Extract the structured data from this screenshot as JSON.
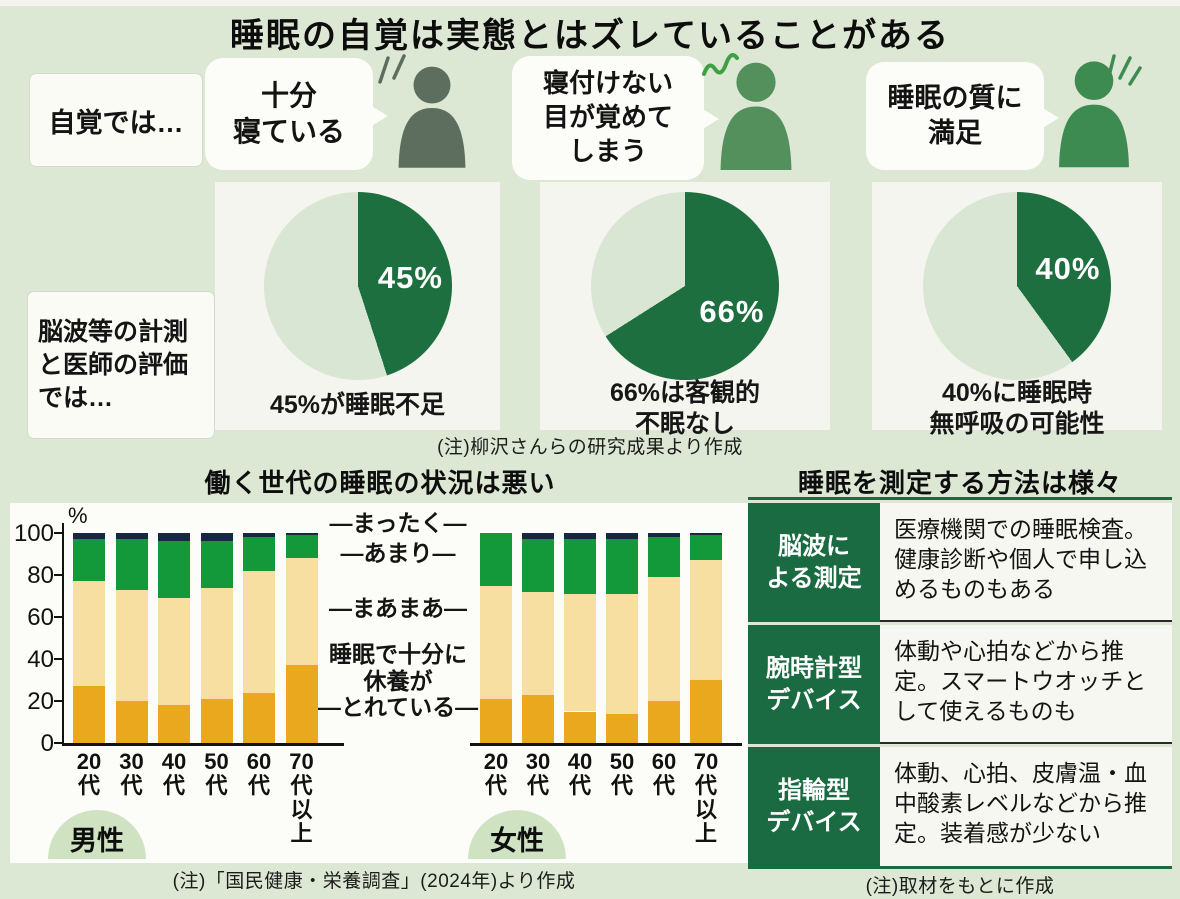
{
  "title": "睡眠の自覚は実態とはズレていることがある",
  "top": {
    "awareness_label": "自覚では…",
    "measured_label": "脳波等の計測\nと医師の評価\nでは…",
    "bubbles": [
      "十分\n寝ている",
      "寝付けない\n目が覚めて\nしまう",
      "睡眠の質に\n満足"
    ],
    "note": "(注)柳沢さんらの研究成果より作成"
  },
  "chart_data": [
    {
      "type": "pie",
      "claim": "十分寝ている",
      "value": 45,
      "percent_label": "45%",
      "caption": "45%が睡眠不足",
      "colors": {
        "slice": "#1e6f40",
        "rest": "#d8e6d3"
      }
    },
    {
      "type": "pie",
      "claim": "寝付けない・目が覚めてしまう",
      "value": 66,
      "percent_label": "66%",
      "caption": "66%は客観的\n不眠なし",
      "colors": {
        "slice": "#1e6f40",
        "rest": "#d8e6d3"
      }
    },
    {
      "type": "pie",
      "claim": "睡眠の質に満足",
      "value": 40,
      "percent_label": "40%",
      "caption": "40%に睡眠時\n無呼吸の可能性",
      "colors": {
        "slice": "#1e6f40",
        "rest": "#d8e6d3"
      }
    },
    {
      "type": "bar",
      "stacked": true,
      "title": "働く世代の睡眠の状況は悪い",
      "unit_label": "%",
      "ylim": [
        0,
        100
      ],
      "yticks": [
        0,
        20,
        40,
        60,
        80,
        100
      ],
      "categories": [
        "20代",
        "30代",
        "40代",
        "50代",
        "60代",
        "70代以上"
      ],
      "series": [
        "睡眠で十分に休養がとれている",
        "まあまあ",
        "あまり",
        "まったく"
      ],
      "colors": [
        "#e9a81e",
        "#f6dfa0",
        "#13993a",
        "#16283f"
      ],
      "groups": [
        {
          "label": "男性",
          "values": [
            [
              27,
              50,
              20,
              3
            ],
            [
              20,
              53,
              24,
              3
            ],
            [
              18,
              51,
              27,
              4
            ],
            [
              21,
              53,
              22,
              4
            ],
            [
              24,
              58,
              16,
              2
            ],
            [
              37,
              51,
              11,
              1
            ]
          ]
        },
        {
          "label": "女性",
          "values": [
            [
              21,
              54,
              25,
              0
            ],
            [
              23,
              49,
              25,
              3
            ],
            [
              15,
              56,
              26,
              3
            ],
            [
              14,
              57,
              26,
              3
            ],
            [
              20,
              59,
              19,
              2
            ],
            [
              30,
              57,
              12,
              1
            ]
          ]
        }
      ],
      "legend_items": [
        "―まったく―",
        "―あまり―",
        "―まあまあ―",
        "睡眠で十分に\n休養が\n―とれている―"
      ],
      "note": "(注)「国民健康・栄養調査」(2024年)より作成"
    }
  ],
  "methods_table": {
    "title": "睡眠を測定する方法は様々",
    "rows": [
      {
        "method": "脳波に\nよる測定",
        "desc": "医療機関での睡眠検査。健康診断や個人で申し込めるものもある"
      },
      {
        "method": "腕時計型\nデバイス",
        "desc": "体動や心拍などから推定。スマートウオッチとして使えるものも"
      },
      {
        "method": "指輪型\nデバイス",
        "desc": "体動、心拍、皮膚温・血中酸素レベルなどから推定。装着感が少ない"
      }
    ],
    "note": "(注)取材をもとに作成"
  }
}
